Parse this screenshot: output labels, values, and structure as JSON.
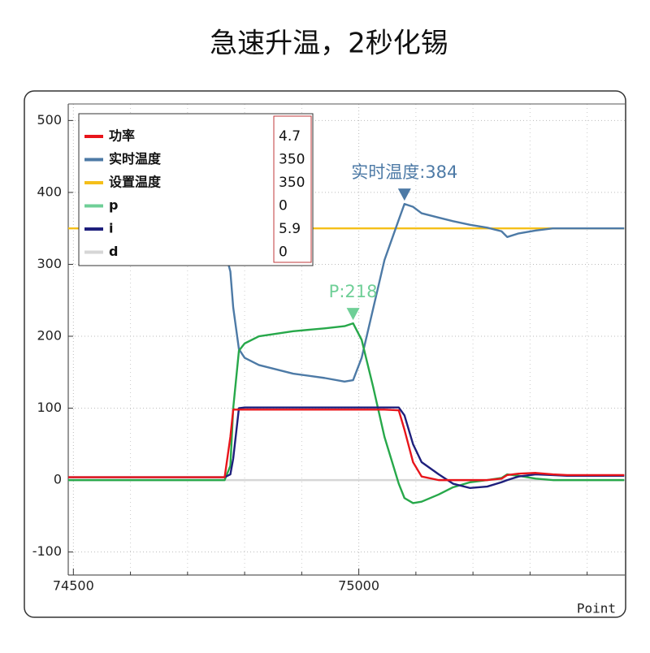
{
  "title": "急速升温，2秒化锡",
  "chart_data": {
    "type": "line",
    "xlabel": "Point",
    "x": [
      74490,
      74765,
      74775,
      74780,
      74790,
      74800,
      74825,
      74885,
      74940,
      74975,
      74990,
      75005,
      75025,
      75045,
      75070,
      75080,
      75095,
      75110,
      75140,
      75165,
      75195,
      75225,
      75250,
      75260,
      75280,
      75310,
      75340,
      75365,
      75395,
      75465
    ],
    "series": [
      {
        "name": "功率",
        "color": "#e8151b",
        "readout": "4.7",
        "values": [
          4,
          4,
          60,
          98,
          98,
          98,
          98,
          98,
          98,
          98,
          98,
          98,
          98,
          98,
          97,
          70,
          25,
          5,
          0,
          0,
          0,
          0,
          2,
          7,
          9,
          10,
          8,
          7,
          7,
          7
        ]
      },
      {
        "name": "实时温度",
        "color": "#4d7aa6",
        "readout": "350",
        "values": [
          null,
          320,
          290,
          240,
          182,
          170,
          160,
          148,
          142,
          137,
          139,
          170,
          238,
          306,
          362,
          384,
          380,
          371,
          365,
          360,
          355,
          351,
          346,
          338,
          343,
          347,
          350,
          350,
          350,
          350
        ]
      },
      {
        "name": "设置温度",
        "color": "#f5bf19",
        "readout": "350",
        "values": [
          350,
          350,
          350,
          350,
          350,
          350,
          350,
          350,
          350,
          350,
          350,
          350,
          350,
          350,
          350,
          350,
          350,
          350,
          350,
          350,
          350,
          350,
          350,
          350,
          350,
          350,
          350,
          350,
          350,
          350
        ]
      },
      {
        "name": "p",
        "color": "#27a84a",
        "readout": "0",
        "values": [
          0,
          0,
          20,
          100,
          180,
          190,
          200,
          207,
          211,
          214,
          218,
          195,
          130,
          60,
          -5,
          -25,
          -32,
          -30,
          -20,
          -10,
          -3,
          0,
          3,
          8,
          6,
          2,
          0,
          0,
          0,
          0
        ]
      },
      {
        "name": "i",
        "color": "#1e1f7c",
        "readout": "5.9",
        "values": [
          4,
          4,
          8,
          30,
          100,
          101,
          101,
          101,
          101,
          101,
          101,
          101,
          101,
          101,
          101,
          90,
          50,
          25,
          8,
          -5,
          -11,
          -9,
          -3,
          0,
          5,
          8,
          7,
          6,
          6,
          6
        ]
      },
      {
        "name": "d",
        "color": "#d6d6d6",
        "readout": "0",
        "values": [
          0,
          0,
          0,
          0,
          0,
          0,
          0,
          0,
          0,
          0,
          0,
          0,
          0,
          0,
          0,
          0,
          0,
          0,
          0,
          0,
          0,
          0,
          0,
          0,
          0,
          0,
          0,
          0,
          0,
          0
        ]
      }
    ],
    "annotations": [
      {
        "text": "实时温度:384",
        "x": 75080,
        "y": 384,
        "color": "#4d7aa6"
      },
      {
        "text": "P:218",
        "x": 74990,
        "y": 218,
        "color": "#6fcf97"
      }
    ],
    "xlim": [
      74491,
      75466
    ],
    "xticks": [
      74500,
      75000
    ],
    "xminorticks": [
      74600,
      74700,
      74800,
      74900,
      75100,
      75200,
      75300,
      75400
    ],
    "ylim": [
      -132,
      523
    ],
    "yticks": [
      -100,
      0,
      100,
      200,
      300,
      400,
      500
    ],
    "grid": true
  }
}
